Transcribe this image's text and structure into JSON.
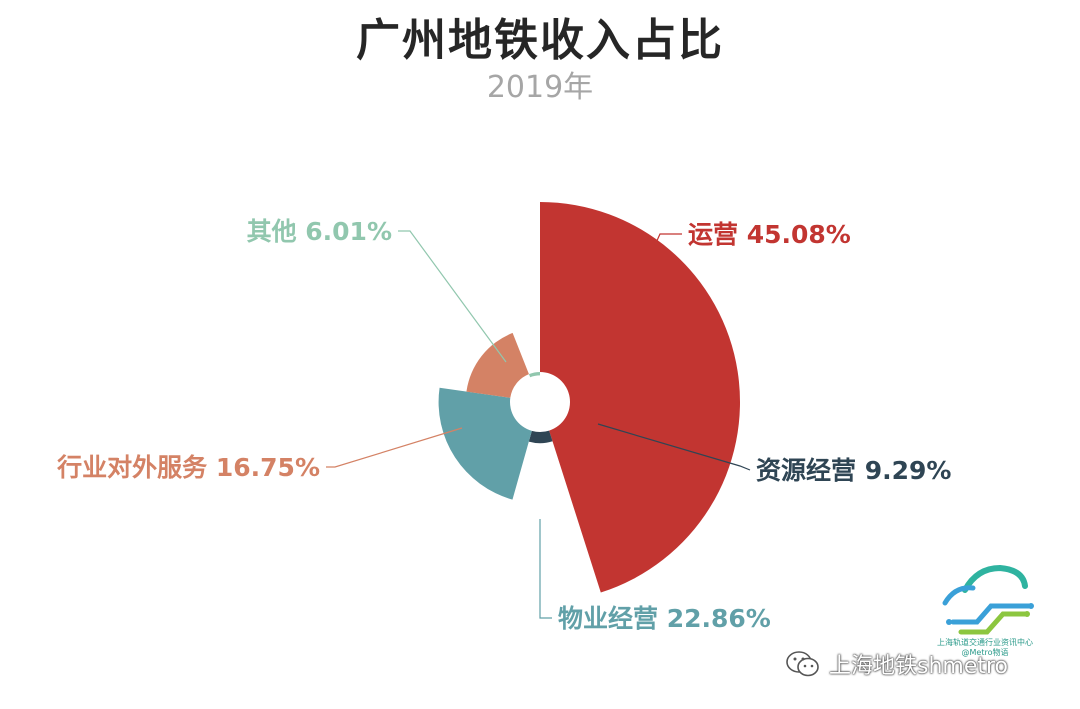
{
  "header": {
    "title": "广州地铁收入占比",
    "subtitle": "2019年"
  },
  "chart_data": {
    "type": "pie",
    "variant": "rose",
    "title": "广州地铁收入占比",
    "subtitle": "2019年",
    "unit": "%",
    "slices": [
      {
        "name": "运营",
        "value": 45.08,
        "label": "运营 45.08%",
        "color": "#c23531"
      },
      {
        "name": "资源经营",
        "value": 9.29,
        "label": "资源经营 9.29%",
        "color": "#2f4554"
      },
      {
        "name": "物业经营",
        "value": 22.86,
        "label": "物业经营 22.86%",
        "color": "#61a0a8"
      },
      {
        "name": "行业对外服务",
        "value": 16.75,
        "label": "行业对外服务 16.75%",
        "color": "#d48265"
      },
      {
        "name": "其他",
        "value": 6.01,
        "label": "其他 6.01%",
        "color": "#91c7ae"
      }
    ]
  },
  "watermark": {
    "logo_line1": "上海轨道交通行业资讯中心",
    "logo_line2": "@Metro物语",
    "account": "上海地铁shmetro",
    "account_icon": "wechat-icon"
  }
}
